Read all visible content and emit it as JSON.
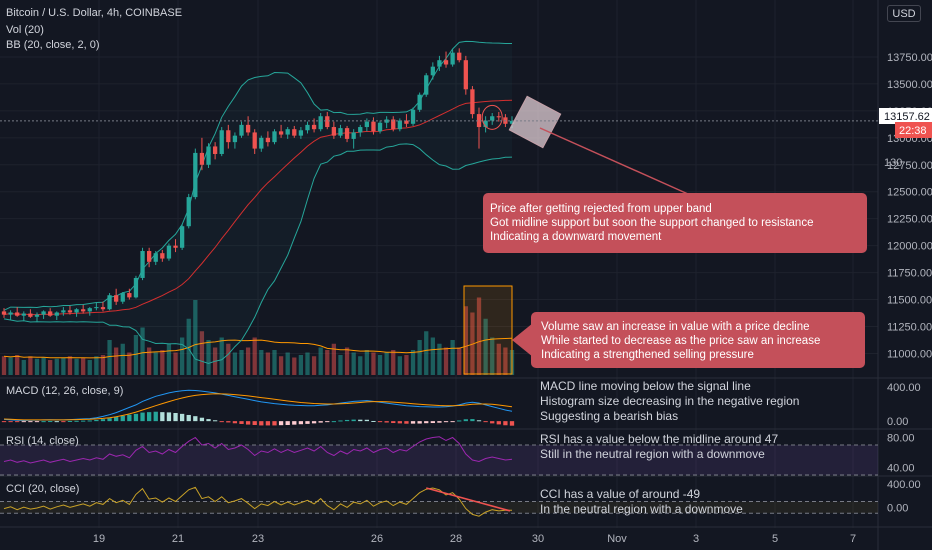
{
  "header": {
    "title": "Bitcoin / U.S. Dollar, 4h, COINBASE",
    "indicator_vol": "Vol (20)",
    "indicator_bb": "BB (20, close, 2, 0)",
    "currency_button": "USD"
  },
  "colors": {
    "background": "#131722",
    "grid": "#1e222d",
    "up": "#26a69a",
    "down": "#ef5350",
    "bb_band": "#26a69a",
    "bb_basis": "#d32f2f",
    "macd_line": "#2196f3",
    "signal_line": "#ff9800",
    "rsi_line": "#9c27b0",
    "cci_line": "#c9a227",
    "annotation_box": "#c4505a",
    "volume_highlight": "#ff9800"
  },
  "chart_data": [
    {
      "type": "candlestick",
      "pane": "price",
      "title": "Bitcoin / U.S. Dollar, 4h, COINBASE",
      "ylim": [
        10800,
        14000
      ],
      "y_ticks": [
        "13750.00",
        "13500.00",
        "13250.00",
        "13000.00",
        "12750.00",
        "12500.00",
        "12250.00",
        "12000.00",
        "11750.00",
        "11500.00",
        "11250.00",
        "11000.00"
      ],
      "x_ticks": [
        "19",
        "21",
        "23",
        "26",
        "28",
        "30",
        "Nov",
        "3",
        "5",
        "7"
      ],
      "last_price_label": "13157.62",
      "countdown_label": "22:38",
      "axis_stub_label": "130",
      "ohlc": [
        [
          11390,
          11420,
          11330,
          11360
        ],
        [
          11360,
          11400,
          11310,
          11380
        ],
        [
          11380,
          11430,
          11340,
          11350
        ],
        [
          11350,
          11390,
          11300,
          11370
        ],
        [
          11370,
          11410,
          11330,
          11340
        ],
        [
          11340,
          11380,
          11290,
          11360
        ],
        [
          11360,
          11400,
          11320,
          11390
        ],
        [
          11390,
          11420,
          11340,
          11350
        ],
        [
          11350,
          11390,
          11310,
          11380
        ],
        [
          11380,
          11430,
          11350,
          11400
        ],
        [
          11400,
          11440,
          11360,
          11380
        ],
        [
          11380,
          11420,
          11340,
          11410
        ],
        [
          11410,
          11450,
          11370,
          11390
        ],
        [
          11390,
          11430,
          11350,
          11420
        ],
        [
          11420,
          11470,
          11400,
          11430
        ],
        [
          11430,
          11480,
          11390,
          11410
        ],
        [
          11410,
          11560,
          11400,
          11540
        ],
        [
          11540,
          11600,
          11450,
          11480
        ],
        [
          11480,
          11570,
          11460,
          11560
        ],
        [
          11560,
          11600,
          11500,
          11520
        ],
        [
          11520,
          11720,
          11510,
          11700
        ],
        [
          11700,
          11980,
          11680,
          11950
        ],
        [
          11950,
          11980,
          11800,
          11850
        ],
        [
          11850,
          11950,
          11820,
          11930
        ],
        [
          11930,
          11960,
          11850,
          11880
        ],
        [
          11880,
          12020,
          11860,
          12000
        ],
        [
          12000,
          12060,
          11940,
          11980
        ],
        [
          11980,
          12200,
          11960,
          12180
        ],
        [
          12180,
          12480,
          12160,
          12450
        ],
        [
          12450,
          12900,
          12430,
          12860
        ],
        [
          12860,
          13000,
          12700,
          12750
        ],
        [
          12750,
          12950,
          12720,
          12920
        ],
        [
          12920,
          12960,
          12800,
          12850
        ],
        [
          12850,
          13100,
          12830,
          13070
        ],
        [
          13070,
          13120,
          12900,
          12960
        ],
        [
          12960,
          13050,
          12900,
          13020
        ],
        [
          13020,
          13150,
          13000,
          13120
        ],
        [
          13120,
          13200,
          13020,
          13050
        ],
        [
          13050,
          13080,
          12850,
          12900
        ],
        [
          12900,
          13020,
          12870,
          13000
        ],
        [
          13000,
          13060,
          12920,
          12960
        ],
        [
          12960,
          13080,
          12940,
          13060
        ],
        [
          13060,
          13120,
          13000,
          13030
        ],
        [
          13030,
          13100,
          12990,
          13080
        ],
        [
          13080,
          13110,
          13000,
          13020
        ],
        [
          13020,
          13100,
          12990,
          13070
        ],
        [
          13070,
          13150,
          13040,
          13120
        ],
        [
          13120,
          13180,
          13050,
          13080
        ],
        [
          13080,
          13230,
          13060,
          13200
        ],
        [
          13200,
          13240,
          13080,
          13100
        ],
        [
          13100,
          13150,
          12990,
          13020
        ],
        [
          13020,
          13120,
          13000,
          13090
        ],
        [
          13090,
          13110,
          12960,
          12990
        ],
        [
          12990,
          13080,
          12900,
          13050
        ],
        [
          13050,
          13120,
          13010,
          13100
        ],
        [
          13100,
          13180,
          13060,
          13150
        ],
        [
          13150,
          13190,
          13030,
          13060
        ],
        [
          13060,
          13160,
          13040,
          13140
        ],
        [
          13140,
          13200,
          13090,
          13170
        ],
        [
          13170,
          13200,
          13060,
          13080
        ],
        [
          13080,
          13180,
          13060,
          13160
        ],
        [
          13160,
          13220,
          13100,
          13130
        ],
        [
          13130,
          13280,
          13110,
          13260
        ],
        [
          13260,
          13420,
          13240,
          13400
        ],
        [
          13400,
          13600,
          13380,
          13580
        ],
        [
          13580,
          13700,
          13540,
          13660
        ],
        [
          13660,
          13760,
          13620,
          13720
        ],
        [
          13720,
          13800,
          13650,
          13680
        ],
        [
          13680,
          13820,
          13660,
          13790
        ],
        [
          13790,
          13830,
          13700,
          13720
        ],
        [
          13720,
          13760,
          13400,
          13450
        ],
        [
          13450,
          13480,
          13180,
          13220
        ],
        [
          13220,
          13280,
          12900,
          13100
        ],
        [
          13100,
          13200,
          13050,
          13160
        ],
        [
          13160,
          13230,
          13120,
          13200
        ],
        [
          13200,
          13240,
          13150,
          13190
        ],
        [
          13190,
          13220,
          13100,
          13130
        ],
        [
          13130,
          13200,
          13090,
          13157.62
        ]
      ]
    },
    {
      "type": "bar",
      "pane": "volume",
      "title": "Vol (20)",
      "values": [
        0.15,
        0.14,
        0.16,
        0.12,
        0.15,
        0.13,
        0.14,
        0.12,
        0.13,
        0.14,
        0.15,
        0.13,
        0.14,
        0.12,
        0.15,
        0.16,
        0.28,
        0.22,
        0.25,
        0.18,
        0.32,
        0.38,
        0.22,
        0.18,
        0.2,
        0.25,
        0.18,
        0.3,
        0.45,
        0.6,
        0.35,
        0.28,
        0.22,
        0.3,
        0.25,
        0.18,
        0.2,
        0.22,
        0.3,
        0.2,
        0.18,
        0.2,
        0.15,
        0.18,
        0.14,
        0.16,
        0.18,
        0.15,
        0.22,
        0.2,
        0.25,
        0.16,
        0.22,
        0.18,
        0.15,
        0.2,
        0.18,
        0.16,
        0.18,
        0.2,
        0.15,
        0.16,
        0.2,
        0.28,
        0.35,
        0.3,
        0.25,
        0.22,
        0.28,
        0.22,
        0.55,
        0.5,
        0.62,
        0.45,
        0.3,
        0.25,
        0.22,
        0.2
      ]
    },
    {
      "type": "line",
      "pane": "macd",
      "title": "MACD (12, 26, close, 9)",
      "y_ticks": [
        "400.00",
        "0.00"
      ],
      "ylim": [
        -80,
        480
      ],
      "series": [
        {
          "name": "",
          "values": [
            20,
            15,
            10,
            8,
            10,
            12,
            14,
            16,
            15,
            14,
            18,
            22,
            26,
            30,
            40,
            55,
            75,
            100,
            130,
            160,
            190,
            230,
            260,
            290,
            310,
            330,
            345,
            355,
            360,
            358,
            350,
            340,
            330,
            315,
            300,
            285,
            270,
            255,
            240,
            225,
            215,
            205,
            198,
            190,
            185,
            182,
            180,
            180,
            185,
            190,
            200,
            210,
            220,
            230,
            235,
            240,
            230,
            220,
            210,
            200,
            190,
            180,
            175,
            170,
            168,
            165,
            165,
            168,
            175,
            190,
            210,
            220,
            210,
            190,
            170,
            150,
            130,
            115
          ]
        },
        {
          "name": "",
          "values": [
            25,
            22,
            18,
            15,
            14,
            14,
            14,
            15,
            15,
            15,
            16,
            18,
            20,
            22,
            26,
            32,
            40,
            52,
            67,
            85,
            105,
            130,
            155,
            180,
            205,
            228,
            250,
            270,
            288,
            300,
            310,
            316,
            320,
            318,
            315,
            310,
            303,
            295,
            285,
            275,
            265,
            255,
            245,
            235,
            226,
            218,
            212,
            206,
            202,
            200,
            200,
            202,
            206,
            212,
            218,
            224,
            228,
            228,
            226,
            222,
            216,
            210,
            204,
            198,
            192,
            187,
            183,
            180,
            179,
            182,
            188,
            196,
            200,
            200,
            196,
            188,
            178,
            168
          ]
        }
      ]
    },
    {
      "type": "line",
      "pane": "rsi",
      "title": "RSI (14, close)",
      "y_ticks": [
        "80.00",
        "40.00"
      ],
      "ylim": [
        30,
        90
      ],
      "values": [
        48,
        50,
        47,
        49,
        46,
        48,
        50,
        47,
        49,
        51,
        48,
        50,
        52,
        50,
        53,
        51,
        58,
        55,
        57,
        53,
        63,
        68,
        60,
        62,
        58,
        64,
        60,
        68,
        75,
        80,
        70,
        72,
        66,
        72,
        64,
        66,
        70,
        64,
        56,
        62,
        60,
        65,
        60,
        64,
        60,
        63,
        66,
        62,
        68,
        60,
        56,
        62,
        58,
        64,
        62,
        66,
        60,
        64,
        66,
        60,
        64,
        62,
        68,
        74,
        78,
        80,
        81,
        76,
        80,
        72,
        58,
        50,
        48,
        52,
        54,
        52,
        50,
        51
      ]
    },
    {
      "type": "line",
      "pane": "cci",
      "title": "CCI (20, close)",
      "y_ticks": [
        "400.00",
        "0.00"
      ],
      "ylim": [
        -300,
        500
      ],
      "values": [
        -20,
        10,
        -40,
        5,
        -30,
        -10,
        20,
        -30,
        10,
        40,
        0,
        30,
        60,
        20,
        80,
        50,
        150,
        80,
        120,
        50,
        220,
        320,
        140,
        160,
        90,
        160,
        100,
        200,
        300,
        340,
        150,
        180,
        100,
        180,
        80,
        110,
        150,
        70,
        -20,
        60,
        30,
        100,
        40,
        90,
        40,
        80,
        120,
        60,
        150,
        30,
        -40,
        60,
        0,
        90,
        60,
        120,
        20,
        80,
        110,
        30,
        90,
        50,
        150,
        250,
        310,
        330,
        300,
        210,
        250,
        140,
        -20,
        -120,
        -150,
        -80,
        -40,
        -60,
        -50,
        -49
      ]
    }
  ],
  "annotations": {
    "price_note": [
      "Price after getting rejected from upper band",
      "Got midline support but soon the support changed to resistance",
      "Indicating a downward movement"
    ],
    "volume_note": [
      "Volume saw an increase in value with a price decline",
      "While started to decrease as the price saw an increase",
      "Indicating a strengthened selling pressure"
    ],
    "macd_note": [
      "MACD line moving below the signal line",
      "Histogram size decreasing in the negative region",
      "Suggesting a bearish bias"
    ],
    "rsi_note": [
      "RSI has a value below the midline around 47",
      "Still in the neutral region with a downmove"
    ],
    "cci_note": [
      "CCI has a value of around -49",
      "In the neutral region with a downmove"
    ]
  }
}
